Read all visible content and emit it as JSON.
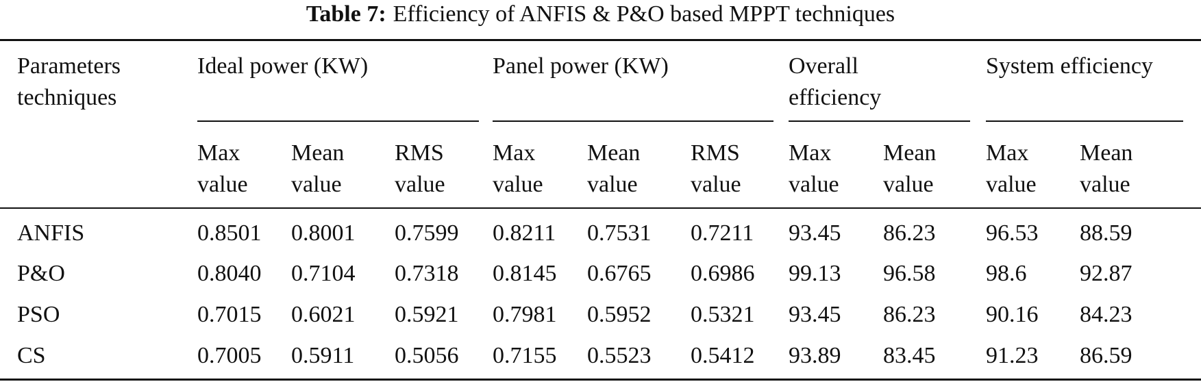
{
  "title": {
    "label": "Table 7:",
    "text": "Efficiency of ANFIS & P&O based MPPT techniques"
  },
  "table": {
    "corner": "Parameters techniques",
    "groups": [
      {
        "label": "Ideal power (KW)",
        "columns": [
          "Max value",
          "Mean value",
          "RMS value"
        ]
      },
      {
        "label": "Panel power (KW)",
        "columns": [
          "Max value",
          "Mean value",
          "RMS value"
        ]
      },
      {
        "label": "Overall efficiency",
        "columns": [
          "Max value",
          "Mean value"
        ]
      },
      {
        "label": "System efficiency",
        "columns": [
          "Max value",
          "Mean value"
        ]
      }
    ],
    "rows": [
      {
        "label": "ANFIS",
        "cells": [
          "0.8501",
          "0.8001",
          "0.7599",
          "0.8211",
          "0.7531",
          "0.7211",
          "93.45",
          "86.23",
          "96.53",
          "88.59"
        ]
      },
      {
        "label": "P&O",
        "cells": [
          "0.8040",
          "0.7104",
          "0.7318",
          "0.8145",
          "0.6765",
          "0.6986",
          "99.13",
          "96.58",
          "98.6",
          "92.87"
        ]
      },
      {
        "label": "PSO",
        "cells": [
          "0.7015",
          "0.6021",
          "0.5921",
          "0.7981",
          "0.5952",
          "0.5321",
          "93.45",
          "86.23",
          "90.16",
          "84.23"
        ]
      },
      {
        "label": "CS",
        "cells": [
          "0.7005",
          "0.5911",
          "0.5056",
          "0.7155",
          "0.5523",
          "0.5412",
          "93.89",
          "83.45",
          "91.23",
          "86.59"
        ]
      }
    ]
  }
}
